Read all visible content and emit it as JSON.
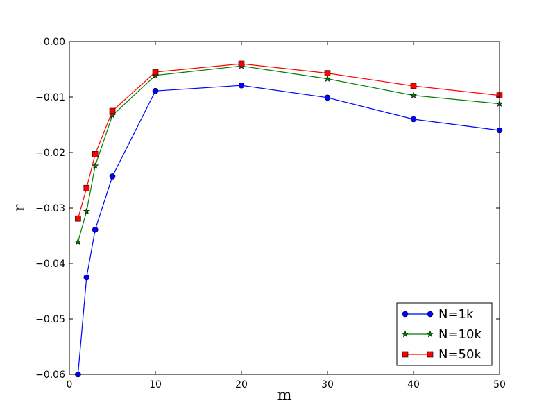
{
  "chart_data": {
    "type": "line",
    "title": "",
    "xlabel": "m",
    "ylabel": "r",
    "xlim": [
      0,
      50
    ],
    "ylim": [
      -0.06,
      0.0
    ],
    "xticks": [
      0,
      10,
      20,
      30,
      40,
      50
    ],
    "yticks": [
      0.0,
      -0.01,
      -0.02,
      -0.03,
      -0.04,
      -0.05,
      -0.06
    ],
    "xtick_labels": [
      "0",
      "10",
      "20",
      "30",
      "40",
      "50"
    ],
    "ytick_labels": [
      "0.00",
      "−0.01",
      "−0.02",
      "−0.03",
      "−0.04",
      "−0.05",
      "−0.06"
    ],
    "grid": false,
    "legend_position": "bottom-right",
    "x": [
      1,
      2,
      3,
      5,
      10,
      20,
      30,
      40,
      50
    ],
    "series": [
      {
        "name": "N=1k",
        "color": "#0000ff",
        "marker": "circle",
        "values": [
          -0.06,
          -0.0425,
          -0.0339,
          -0.0243,
          -0.0089,
          -0.0079,
          -0.0101,
          -0.014,
          -0.016
        ]
      },
      {
        "name": "N=10k",
        "color": "#007f00",
        "marker": "star",
        "values": [
          -0.0361,
          -0.0306,
          -0.0224,
          -0.0133,
          -0.0061,
          -0.0044,
          -0.0067,
          -0.0097,
          -0.0112
        ]
      },
      {
        "name": "N=50k",
        "color": "#ff0000",
        "marker": "square",
        "values": [
          -0.0319,
          -0.0264,
          -0.0203,
          -0.0125,
          -0.0055,
          -0.004,
          -0.0057,
          -0.008,
          -0.0097
        ]
      }
    ]
  }
}
